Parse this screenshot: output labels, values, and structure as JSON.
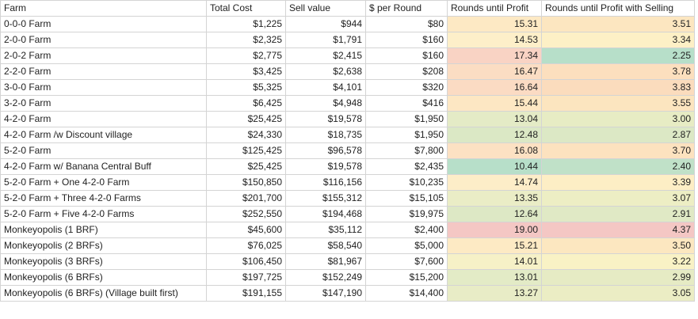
{
  "headers": {
    "farm": "Farm",
    "total_cost": "Total Cost",
    "sell_value": "Sell value",
    "per_round": "$ per Round",
    "rounds_until_profit": "Rounds until Profit",
    "rounds_until_profit_selling": "Rounds until Profit with Selling"
  },
  "rows": [
    {
      "farm": "0-0-0 Farm",
      "total_cost": "$1,225",
      "sell_value": "$944",
      "per_round": "$80",
      "rup": "15.31",
      "rups": "3.51",
      "rup_color": "#fde9c4",
      "rups_color": "#fce6c0"
    },
    {
      "farm": "2-0-0 Farm",
      "total_cost": "$2,325",
      "sell_value": "$1,791",
      "per_round": "$160",
      "rup": "14.53",
      "rups": "3.34",
      "rup_color": "#fdefc9",
      "rups_color": "#fdf0c6"
    },
    {
      "farm": "2-0-2 Farm",
      "total_cost": "$2,775",
      "sell_value": "$2,415",
      "per_round": "$160",
      "rup": "17.34",
      "rups": "2.25",
      "rup_color": "#f9d3c4",
      "rups_color": "#b7dfc9"
    },
    {
      "farm": "2-2-0 Farm",
      "total_cost": "$3,425",
      "sell_value": "$2,638",
      "per_round": "$208",
      "rup": "16.47",
      "rups": "3.78",
      "rup_color": "#fbddc3",
      "rups_color": "#fcdfbe"
    },
    {
      "farm": "3-0-0 Farm",
      "total_cost": "$5,325",
      "sell_value": "$4,101",
      "per_round": "$320",
      "rup": "16.64",
      "rups": "3.83",
      "rup_color": "#fbdbc3",
      "rups_color": "#fbdcbd"
    },
    {
      "farm": "3-2-0 Farm",
      "total_cost": "$6,425",
      "sell_value": "$4,948",
      "per_round": "$416",
      "rup": "15.44",
      "rups": "3.55",
      "rup_color": "#fde7c3",
      "rups_color": "#fce5bf"
    },
    {
      "farm": "4-2-0 Farm",
      "total_cost": "$25,425",
      "sell_value": "$19,578",
      "per_round": "$1,950",
      "rup": "13.04",
      "rups": "3.00",
      "rup_color": "#e4ebc6",
      "rups_color": "#e7ecc4"
    },
    {
      "farm": "4-2-0 Farm /w Discount village",
      "total_cost": "$24,330",
      "sell_value": "$18,735",
      "per_round": "$1,950",
      "rup": "12.48",
      "rups": "2.87",
      "rup_color": "#dbe8c5",
      "rups_color": "#dce8c5"
    },
    {
      "farm": "5-2-0 Farm",
      "total_cost": "$125,425",
      "sell_value": "$96,578",
      "per_round": "$7,800",
      "rup": "16.08",
      "rups": "3.70",
      "rup_color": "#fce1c3",
      "rups_color": "#fce2bf"
    },
    {
      "farm": "4-2-0 Farm w/ Banana Central Buff",
      "total_cost": "$25,425",
      "sell_value": "$19,578",
      "per_round": "$2,435",
      "rup": "10.44",
      "rups": "2.40",
      "rup_color": "#b7dfc9",
      "rups_color": "#c0e1c8"
    },
    {
      "farm": "5-2-0 Farm + One 4-2-0 Farm",
      "total_cost": "$150,850",
      "sell_value": "$116,156",
      "per_round": "$10,235",
      "rup": "14.74",
      "rups": "3.39",
      "rup_color": "#fdedc8",
      "rups_color": "#fdeec5"
    },
    {
      "farm": "5-2-0 Farm + Three 4-2-0 Farms",
      "total_cost": "$201,700",
      "sell_value": "$155,312",
      "per_round": "$15,105",
      "rup": "13.35",
      "rups": "3.07",
      "rup_color": "#eaedc6",
      "rups_color": "#edeec4"
    },
    {
      "farm": "5-2-0 Farm + Five 4-2-0 Farms",
      "total_cost": "$252,550",
      "sell_value": "$194,468",
      "per_round": "$19,975",
      "rup": "12.64",
      "rups": "2.91",
      "rup_color": "#dde8c5",
      "rups_color": "#e0e9c5"
    },
    {
      "farm": "Monkeyopolis (1 BRF)",
      "total_cost": "$45,600",
      "sell_value": "$35,112",
      "per_round": "$2,400",
      "rup": "19.00",
      "rups": "4.37",
      "rup_color": "#f4c7c4",
      "rups_color": "#f4c7c4"
    },
    {
      "farm": "Monkeyopolis (2 BRFs)",
      "total_cost": "$76,025",
      "sell_value": "$58,540",
      "per_round": "$5,000",
      "rup": "15.21",
      "rups": "3.50",
      "rup_color": "#fdeac4",
      "rups_color": "#fce7c0"
    },
    {
      "farm": "Monkeyopolis (3 BRFs)",
      "total_cost": "$106,450",
      "sell_value": "$81,967",
      "per_round": "$7,600",
      "rup": "14.01",
      "rups": "3.22",
      "rup_color": "#f6f1c7",
      "rups_color": "#f9f2c5"
    },
    {
      "farm": "Monkeyopolis (6 BRFs)",
      "total_cost": "$197,725",
      "sell_value": "$152,249",
      "per_round": "$15,200",
      "rup": "13.01",
      "rups": "2.99",
      "rup_color": "#e3ebc6",
      "rups_color": "#e6ebc4"
    },
    {
      "farm": "Monkeyopolis (6 BRFs) (Village built first)",
      "total_cost": "$191,155",
      "sell_value": "$147,190",
      "per_round": "$14,400",
      "rup": "13.27",
      "rups": "3.05",
      "rup_color": "#e8ecc6",
      "rups_color": "#ebedc4"
    }
  ]
}
